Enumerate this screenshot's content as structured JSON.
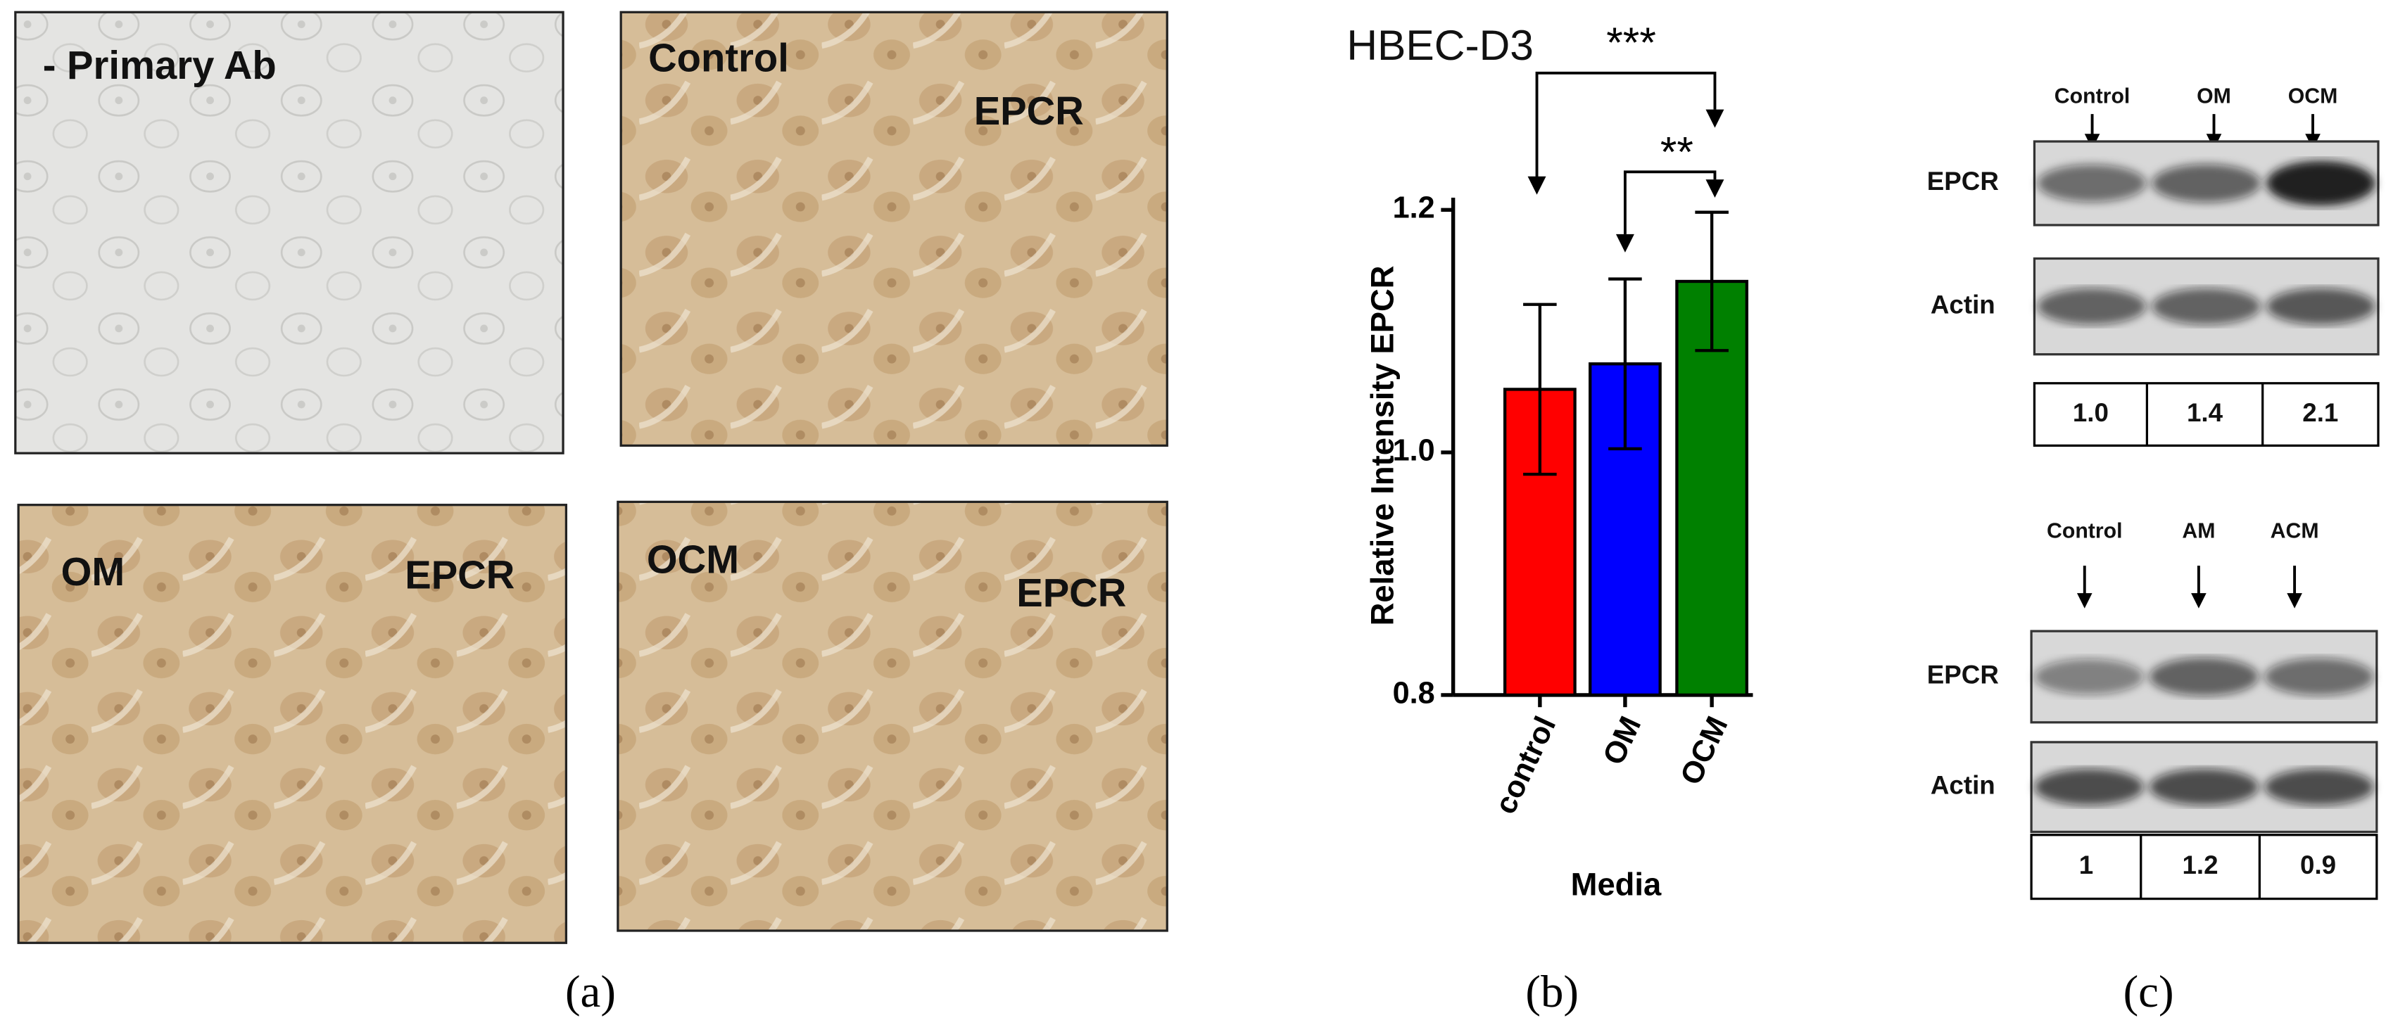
{
  "figure": {
    "panel_labels": [
      "(a)",
      "(b)",
      "(c)"
    ]
  },
  "panel_a": {
    "images": [
      {
        "labels": [
          "- Primary Ab"
        ]
      },
      {
        "labels": [
          "Control",
          "EPCR"
        ]
      },
      {
        "labels": [
          "OM",
          "EPCR"
        ]
      },
      {
        "labels": [
          "OCM",
          "EPCR"
        ]
      }
    ]
  },
  "chart_data": {
    "type": "bar",
    "title": "HBEC-D3",
    "ylabel": "Relative Intensity EPCR",
    "xlabel": "Media",
    "categories": [
      "control",
      "OM",
      "OCM"
    ],
    "values": [
      1.052,
      1.073,
      1.141
    ],
    "errors": [
      0.07,
      0.07,
      0.057
    ],
    "colors": [
      "#ff0000",
      "#0000ff",
      "#008000"
    ],
    "ylim": [
      0.8,
      1.21
    ],
    "yticks": [
      0.8,
      {
        "value": 1,
        "label": "1.0"
      },
      1.2
    ],
    "annotations": [
      "***",
      "**"
    ]
  },
  "panel_c": {
    "blots": [
      {
        "lanes": [
          "Control",
          "OM",
          "OCM"
        ],
        "rows": [
          "EPCR",
          "Actin"
        ],
        "ratios": [
          "1.0",
          "1.4",
          "2.1"
        ]
      },
      {
        "lanes": [
          "Control",
          "AM",
          "ACM"
        ],
        "rows": [
          "EPCR",
          "Actin"
        ],
        "ratios": [
          "1",
          "1.2",
          "0.9"
        ]
      }
    ]
  }
}
